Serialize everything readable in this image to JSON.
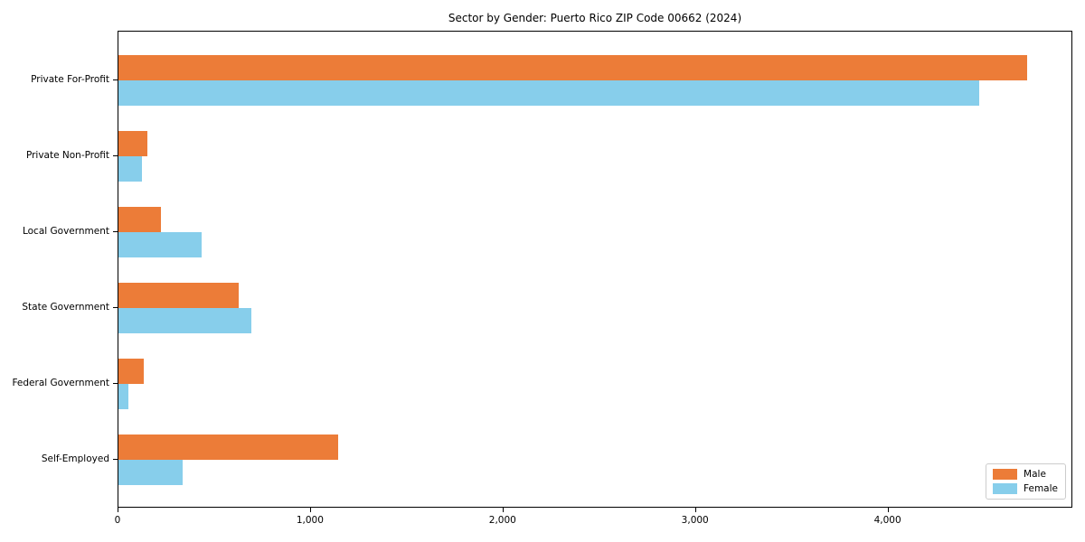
{
  "chart_data": {
    "type": "bar",
    "orientation": "horizontal",
    "title": "Sector by Gender: Puerto Rico ZIP Code 00662 (2024)",
    "categories": [
      "Private For-Profit",
      "Private Non-Profit",
      "Local Government",
      "State Government",
      "Federal Government",
      "Self-Employed"
    ],
    "series": [
      {
        "name": "Male",
        "color": "#ec7c38",
        "values": [
          4720,
          150,
          222,
          625,
          130,
          1140
        ]
      },
      {
        "name": "Female",
        "color": "#87ceeb",
        "values": [
          4470,
          120,
          433,
          690,
          53,
          334
        ]
      }
    ],
    "xlabel": "",
    "ylabel": "",
    "xlim": [
      0,
      4960
    ],
    "xticks": [
      0,
      1000,
      2000,
      3000,
      4000
    ],
    "xtick_labels": [
      "0",
      "1,000",
      "2,000",
      "3,000",
      "4,000"
    ],
    "legend_position": "lower right",
    "grid": false,
    "colors": {
      "axis": "#000000",
      "background": "#ffffff",
      "legend_border": "#cccccc"
    }
  }
}
